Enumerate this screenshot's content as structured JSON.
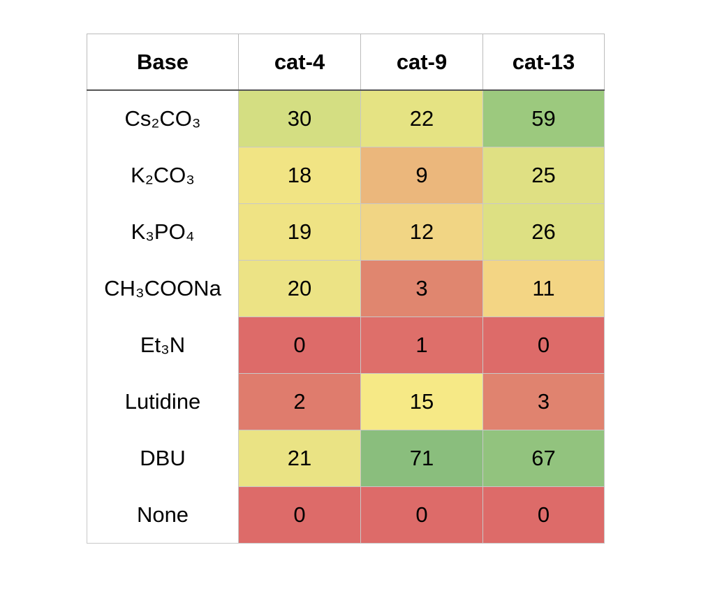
{
  "table": {
    "header": [
      "Base",
      "cat-4",
      "cat-9",
      "cat-13"
    ],
    "rows": [
      {
        "base": "Cs₂CO₃",
        "values": [
          30,
          22,
          59
        ],
        "colors": [
          "#d4de82",
          "#e5e383",
          "#9cc97e"
        ]
      },
      {
        "base": "K₂CO₃",
        "values": [
          18,
          9,
          25
        ],
        "colors": [
          "#f1e484",
          "#ebb77c",
          "#dfe083"
        ]
      },
      {
        "base": "K₃PO₄",
        "values": [
          19,
          12,
          26
        ],
        "colors": [
          "#efe384",
          "#f1d584",
          "#dde083"
        ]
      },
      {
        "base": "CH₃COONa",
        "values": [
          20,
          3,
          11
        ],
        "colors": [
          "#ece385",
          "#e0866f",
          "#f3d584"
        ]
      },
      {
        "base": "Et₃N",
        "values": [
          0,
          1,
          0
        ],
        "colors": [
          "#dd6b69",
          "#de6f6a",
          "#dd6b69"
        ]
      },
      {
        "base": "Lutidine",
        "values": [
          2,
          15,
          3
        ],
        "colors": [
          "#df7c6d",
          "#f6e986",
          "#e0836f"
        ]
      },
      {
        "base": "DBU",
        "values": [
          21,
          71,
          67
        ],
        "colors": [
          "#eae384",
          "#8abe7d",
          "#92c37e"
        ]
      },
      {
        "base": "None",
        "values": [
          0,
          0,
          0
        ],
        "colors": [
          "#dd6b69",
          "#dd6b69",
          "#dd6b69"
        ]
      }
    ]
  }
}
